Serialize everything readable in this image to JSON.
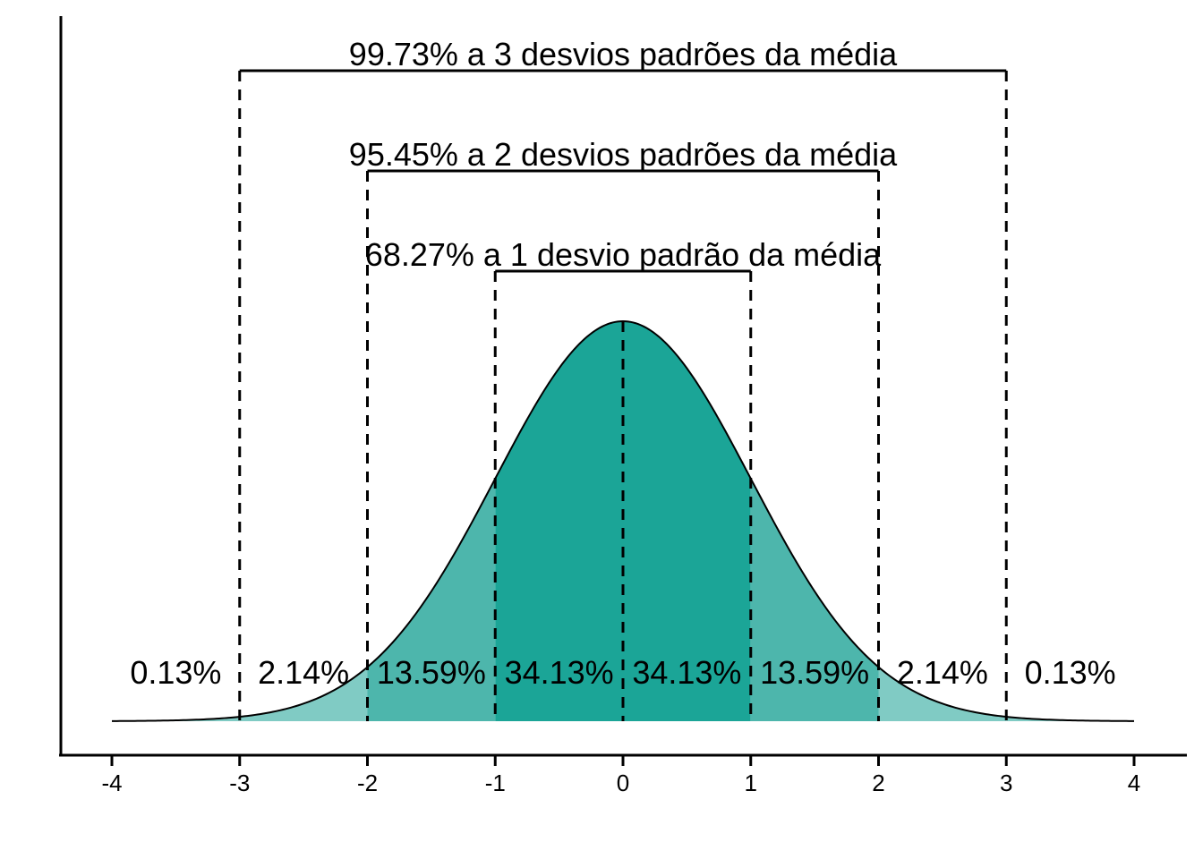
{
  "chart_data": {
    "type": "area",
    "title": "",
    "xlabel": "",
    "ylabel": "",
    "xlim": [
      -4,
      4
    ],
    "x_ticks": [
      "-4",
      "-3",
      "-2",
      "-1",
      "0",
      "1",
      "2",
      "3",
      "4"
    ],
    "curve": "normal density, mean 0, sd 1",
    "regions": [
      {
        "from": -3,
        "to": -2,
        "label": "2.14%",
        "color": "#80cbc4"
      },
      {
        "from": -2,
        "to": -1,
        "label": "13.59%",
        "color": "#4db6ac"
      },
      {
        "from": -1,
        "to": 0,
        "label": "34.13%",
        "color": "#1ba597"
      },
      {
        "from": 0,
        "to": 1,
        "label": "34.13%",
        "color": "#1ba597"
      },
      {
        "from": 1,
        "to": 2,
        "label": "13.59%",
        "color": "#4db6ac"
      },
      {
        "from": 2,
        "to": 3,
        "label": "2.14%",
        "color": "#80cbc4"
      }
    ],
    "tail_labels": [
      {
        "side": "left",
        "label": "0.13%"
      },
      {
        "side": "right",
        "label": "0.13%"
      }
    ],
    "tail_color": "#80cbc4",
    "dashed_lines_at": [
      -3,
      -2,
      -1,
      0,
      1,
      2,
      3
    ],
    "brackets": [
      {
        "from": -1,
        "to": 1,
        "label": "68.27% a 1 desvio padrão da média"
      },
      {
        "from": -2,
        "to": 2,
        "label": "95.45% a 2 desvios padrões da média"
      },
      {
        "from": -3,
        "to": 3,
        "label": "99.73% a 3 desvios padrões da média"
      }
    ]
  }
}
